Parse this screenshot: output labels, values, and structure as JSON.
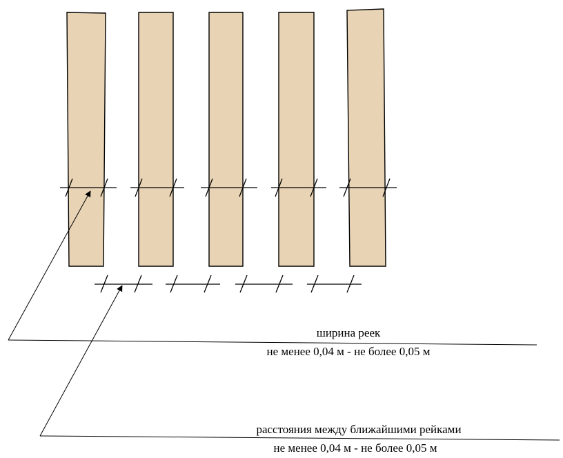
{
  "labels": {
    "slat_width": {
      "title": "ширина реек",
      "range": "не менее 0,04 м - не более 0,05 м"
    },
    "gap_between": {
      "title": "расстояния между ближайшими рейками",
      "range": "не менее 0,04 м - не более 0,05 м"
    }
  },
  "colors": {
    "slat_fill": "#e8d3b5",
    "line": "#000000"
  },
  "slat_count": 5,
  "gap_count": 4
}
